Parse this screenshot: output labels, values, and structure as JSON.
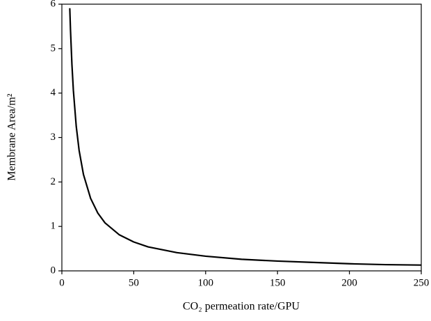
{
  "chart_data": {
    "type": "line",
    "x_label": "CO₂ permeation rate/GPU",
    "y_label": "Membrane Area/m²",
    "x": [
      5.5,
      6,
      7,
      8,
      10,
      12,
      15,
      20,
      25,
      30,
      40,
      50,
      60,
      80,
      100,
      125,
      150,
      175,
      200,
      225,
      250
    ],
    "series": [
      {
        "color": "#000000",
        "values": [
          5.91,
          5.42,
          4.64,
          4.06,
          3.25,
          2.71,
          2.17,
          1.63,
          1.3,
          1.08,
          0.81,
          0.65,
          0.54,
          0.41,
          0.33,
          0.26,
          0.22,
          0.19,
          0.16,
          0.14,
          0.13
        ]
      }
    ],
    "xlim": [
      0,
      250
    ],
    "xticks": [
      0,
      50,
      100,
      150,
      200,
      250
    ],
    "ylim": [
      0,
      6
    ],
    "yticks": [
      0,
      1,
      2,
      3,
      4,
      5,
      6
    ]
  }
}
